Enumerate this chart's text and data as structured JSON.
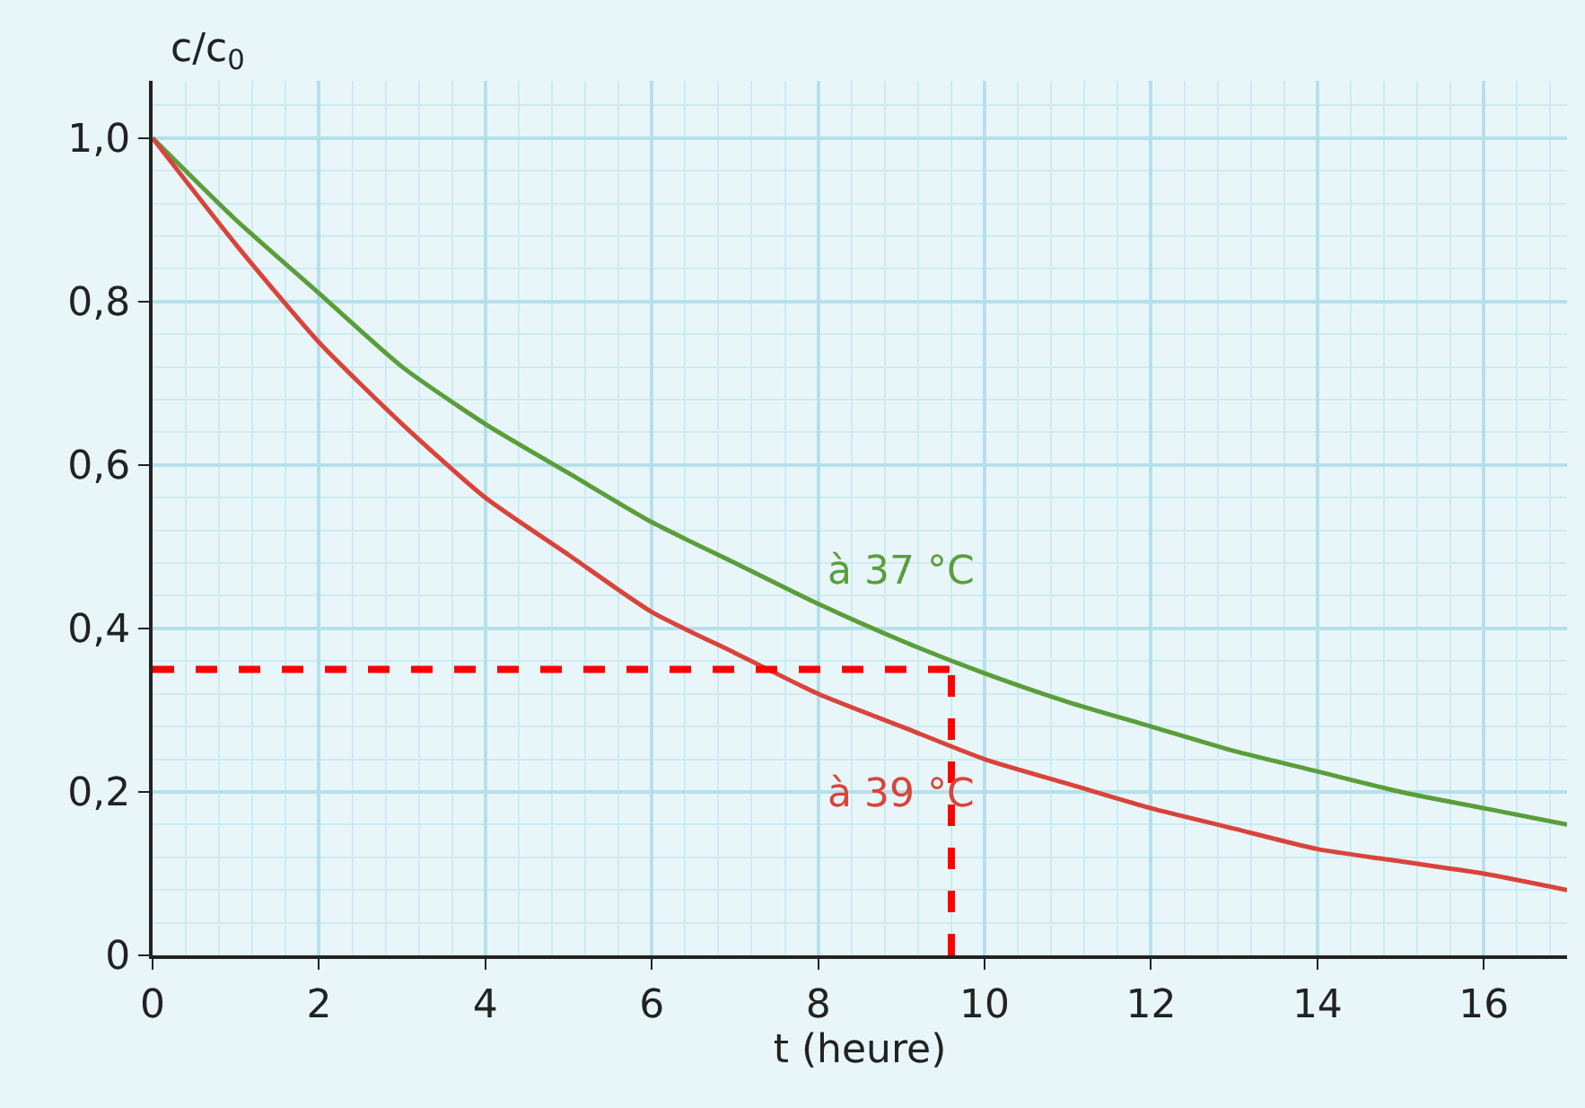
{
  "chart_data": {
    "type": "line",
    "xlabel": "t (heure)",
    "ylabel": "c/c$_{0}$",
    "x": [
      0,
      1,
      2,
      3,
      4,
      5,
      6,
      7,
      8,
      9,
      10,
      11,
      12,
      13,
      14,
      15,
      16,
      17
    ],
    "series": [
      {
        "name": "à 37 °C",
        "color": "#5a9e3a",
        "values": [
          1.0,
          0.9,
          0.81,
          0.72,
          0.65,
          0.59,
          0.53,
          0.48,
          0.43,
          0.385,
          0.345,
          0.31,
          0.28,
          0.25,
          0.225,
          0.2,
          0.18,
          0.16
        ]
      },
      {
        "name": "à 39 °C",
        "color": "#d9443a",
        "values": [
          1.0,
          0.87,
          0.75,
          0.65,
          0.56,
          0.49,
          0.42,
          0.37,
          0.32,
          0.28,
          0.24,
          0.21,
          0.18,
          0.155,
          0.13,
          0.115,
          0.1,
          0.08
        ]
      }
    ],
    "xlim": [
      0,
      17
    ],
    "ylim": [
      0,
      1.07
    ],
    "xticks": [
      0,
      2,
      4,
      6,
      8,
      10,
      12,
      14,
      16
    ],
    "yticks": [
      {
        "value": 0,
        "label": "0"
      },
      {
        "value": 0.2,
        "label": "0,2"
      },
      {
        "value": 0.4,
        "label": "0,4"
      },
      {
        "value": 0.6,
        "label": "0,6"
      },
      {
        "value": 0.8,
        "label": "0,8"
      },
      {
        "value": 1,
        "label": "1,0"
      }
    ],
    "ref_lines": [
      {
        "axis": "y",
        "value": 0.35,
        "color": "#ff0000",
        "line_style": "dashed"
      },
      {
        "axis": "x",
        "value": 9.6,
        "color": "#ff0000",
        "line_style": "dashed"
      }
    ],
    "grid": true,
    "legend": false,
    "marker": "none",
    "line_style": "solid"
  }
}
